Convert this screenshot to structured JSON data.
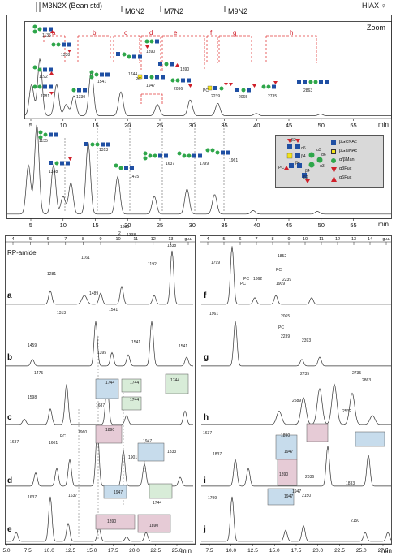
{
  "header": {
    "standards": [
      "M3N2X (Bean std)",
      "M6N2",
      "M7N2",
      "M9N2"
    ],
    "sample": "HIAX ♀",
    "zoom": "Zoom",
    "x_unit": "min"
  },
  "top": {
    "bracket_letters": [
      "a",
      "b",
      "c",
      "d",
      "e",
      "f",
      "g",
      "h"
    ],
    "ticks": [
      "5",
      "10",
      "15",
      "20",
      "25",
      "30",
      "35",
      "40",
      "45",
      "50",
      "55"
    ],
    "zoom_ticks": [
      "5",
      "10",
      "15",
      "20",
      "25",
      "30",
      "35",
      "40",
      "45",
      "50",
      "55"
    ],
    "peaks_main": [
      "1135",
      "1338",
      "1313",
      "1475",
      "1637",
      "1799",
      "1961"
    ],
    "peaks_zoom": [
      "1135",
      "1338",
      "1192",
      "1281",
      "1330",
      "1541",
      "1744",
      "1890",
      "1947",
      "2036",
      "1890",
      "2239",
      "2065",
      "2735",
      "2863"
    ],
    "zoom_marks": [
      "PC",
      "PC"
    ]
  },
  "legend": {
    "items": [
      {
        "label": "βGlcNAc",
        "color": "#1f4fa3",
        "shape": "square"
      },
      {
        "label": "βGalNAc",
        "color": "#f2e21a",
        "shape": "square"
      },
      {
        "label": "α/βMan",
        "color": "#2ea64a",
        "shape": "circle"
      },
      {
        "label": "α3Fuc",
        "color": "#d0202a",
        "shape": "triangle-down"
      },
      {
        "label": "α6Fuc",
        "color": "#d0202a",
        "shape": "triangle-up"
      }
    ],
    "linkages": [
      "β3",
      "α6",
      "β4",
      "α3",
      "β4",
      "β4",
      "β2",
      "α3",
      "α6"
    ],
    "marker": "PC"
  },
  "bottom": {
    "left_title": "RP-amide",
    "gu_ticks": [
      "4",
      "5",
      "6",
      "7",
      "8",
      "9",
      "10",
      "11",
      "12",
      "13",
      "g.u."
    ],
    "right_gu_ticks": [
      "4",
      "5",
      "6",
      "7",
      "8",
      "9",
      "10",
      "11",
      "12",
      "13",
      "14",
      "g.u."
    ],
    "left_x_ticks": [
      "5.0",
      "7.5",
      "10.0",
      "12.5",
      "15.0",
      "17.5",
      "20.0",
      "22.5",
      "25.0"
    ],
    "right_x_ticks": [
      "7.5",
      "10.0",
      "12.5",
      "15.0",
      "17.5",
      "20.0",
      "22.5",
      "25.0",
      "27.5"
    ],
    "x_unit": "min",
    "left_panels": [
      {
        "letter": "a",
        "labels": [
          "1161",
          "1281",
          "1192",
          "1338",
          "2",
          "1338",
          "1338",
          "1489"
        ]
      },
      {
        "letter": "b",
        "labels": [
          "1313",
          "1541",
          "1459",
          "1395",
          "1541",
          "1541"
        ]
      },
      {
        "letter": "c",
        "labels": [
          "1475",
          "1598",
          "1744",
          "1687",
          "1744",
          "1744",
          "1744"
        ]
      },
      {
        "letter": "d",
        "labels": [
          "1960",
          "1637",
          "1601",
          "PC",
          "1890",
          "1947",
          "1901",
          "1833"
        ]
      },
      {
        "letter": "e",
        "labels": [
          "1637",
          "1637",
          "1947",
          "1744",
          "1890",
          "1890"
        ]
      }
    ],
    "right_panels": [
      {
        "letter": "f",
        "labels": [
          "1799",
          "1852",
          "1862",
          "1909",
          "PC",
          "PC",
          "2239",
          "PC"
        ]
      },
      {
        "letter": "g",
        "labels": [
          "1961",
          "2065",
          "2239",
          "2393",
          "PC"
        ]
      },
      {
        "letter": "h",
        "labels": [
          "2735",
          "2589",
          "2735",
          "2532",
          "2863"
        ]
      },
      {
        "letter": "i",
        "labels": [
          "1637",
          "1837",
          "1890",
          "1947",
          "1890",
          "1947"
        ]
      },
      {
        "letter": "j",
        "labels": [
          "1799",
          "2036",
          "1833",
          "2150",
          "2150",
          "1947"
        ]
      }
    ]
  },
  "chart_data": {
    "type": "line",
    "title": "",
    "xlabel": "min",
    "ylabel": "",
    "xlim": [
      2,
      60
    ],
    "series": [
      {
        "x": [
          5,
          6.3,
          8.9,
          10.4,
          11.6,
          14.3,
          18.9,
          24.6,
          29.7,
          34.0,
          40,
          50
        ],
        "values": [
          0.55,
          1.0,
          0.55,
          0.2,
          0.35,
          0.8,
          0.42,
          0.2,
          0.28,
          0.22,
          0.04,
          0.03
        ]
      }
    ]
  }
}
